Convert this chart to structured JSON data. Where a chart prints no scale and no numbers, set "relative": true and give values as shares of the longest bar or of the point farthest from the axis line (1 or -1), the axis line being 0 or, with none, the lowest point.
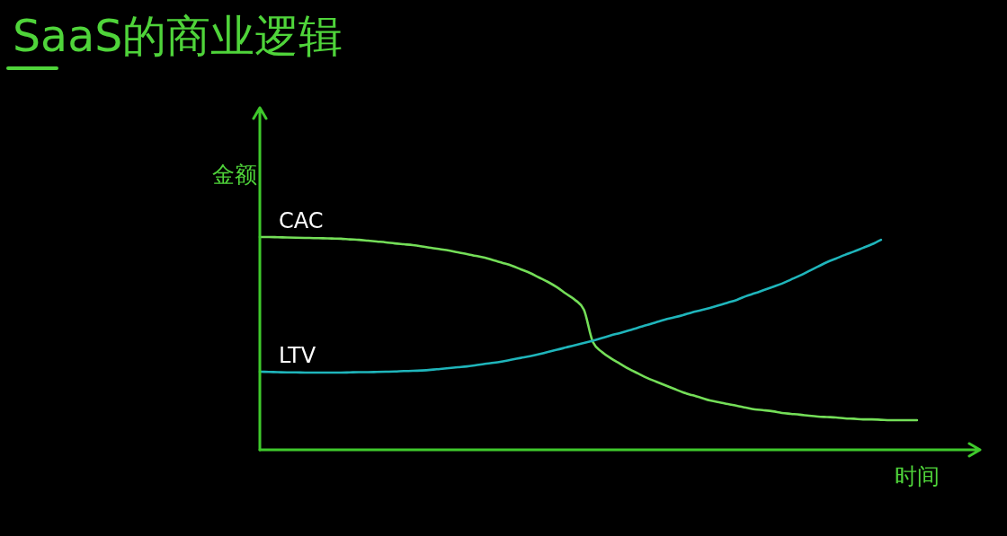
{
  "chart_data": {
    "type": "line",
    "title": "SaaS的商业逻辑",
    "xlabel": "时间",
    "ylabel": "金额",
    "relative": true,
    "categories": [
      null,
      null,
      null,
      null,
      null,
      null,
      null,
      null,
      null,
      null,
      null,
      null,
      null,
      null,
      null,
      null,
      null,
      null,
      null,
      null,
      null,
      null,
      null,
      null,
      null,
      null,
      null,
      null,
      null,
      null,
      null,
      null,
      null,
      null,
      null,
      null,
      null,
      null,
      null,
      null,
      null,
      null,
      null,
      null,
      null,
      null,
      null,
      null,
      null,
      null,
      null,
      null,
      null,
      null,
      null,
      null,
      null,
      null,
      null,
      null,
      null,
      null,
      null,
      null,
      null,
      null,
      null,
      null,
      null,
      null,
      null,
      null,
      null,
      null,
      null,
      null,
      null,
      null,
      null,
      null,
      null
    ],
    "series": [
      {
        "name": "CAC",
        "color": "#74de58",
        "values": [
          1.0,
          1.0,
          0.999,
          0.998,
          0.997,
          0.996,
          0.995,
          0.994,
          0.993,
          0.992,
          0.989,
          0.987,
          0.983,
          0.979,
          0.975,
          0.97,
          0.966,
          0.962,
          0.956,
          0.949,
          0.943,
          0.937,
          0.928,
          0.92,
          0.911,
          0.903,
          0.89,
          0.878,
          0.865,
          0.848,
          0.831,
          0.81,
          0.789,
          0.764,
          0.734,
          0.705,
          0.658,
          0.506,
          0.46,
          0.43,
          0.405,
          0.38,
          0.359,
          0.338,
          0.321,
          0.304,
          0.287,
          0.27,
          0.257,
          0.245,
          0.232,
          0.224,
          0.215,
          0.207,
          0.198,
          0.19,
          0.186,
          0.181,
          0.173,
          0.169,
          0.165,
          0.16,
          0.156,
          0.154,
          0.152,
          0.148,
          0.146,
          0.143,
          0.143,
          0.141,
          0.139,
          0.139,
          0.139,
          0.139,
          null,
          null,
          null,
          null,
          null,
          null,
          null
        ]
      },
      {
        "name": "LTV",
        "color": "#1fb5bb",
        "values": [
          0.367,
          0.366,
          0.365,
          0.364,
          0.364,
          0.363,
          0.363,
          0.363,
          0.363,
          0.363,
          0.364,
          0.365,
          0.365,
          0.366,
          0.367,
          0.368,
          0.37,
          0.371,
          0.373,
          0.376,
          0.38,
          0.384,
          0.388,
          0.392,
          0.398,
          0.404,
          0.409,
          0.416,
          0.424,
          0.432,
          0.44,
          0.449,
          0.46,
          0.47,
          0.481,
          0.492,
          0.502,
          0.513,
          0.525,
          0.538,
          0.549,
          0.561,
          0.574,
          0.586,
          0.599,
          0.612,
          0.622,
          0.633,
          0.646,
          0.656,
          0.667,
          0.679,
          0.692,
          0.705,
          0.722,
          0.736,
          0.751,
          0.766,
          0.781,
          0.8,
          0.819,
          0.84,
          0.861,
          0.882,
          0.899,
          0.916,
          0.932,
          0.949,
          0.966,
          0.987,
          null,
          null,
          null,
          null,
          null,
          null,
          null,
          null,
          null,
          null,
          null
        ]
      }
    ]
  }
}
